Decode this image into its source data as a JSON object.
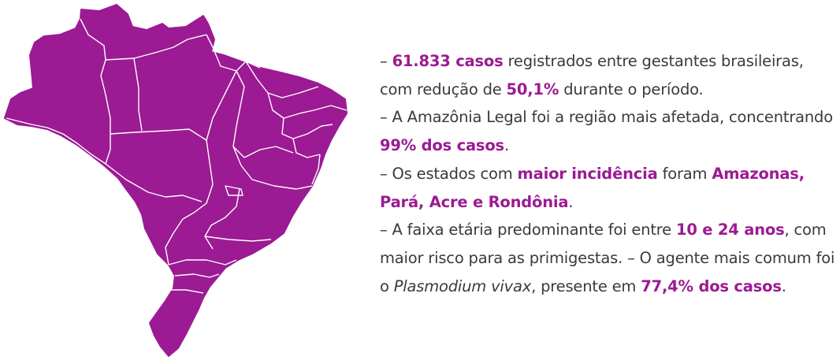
{
  "colors": {
    "accent": "#9c1a93",
    "map_fill": "#9c1a93",
    "border": "#ffffff",
    "text": "#3a3a3a"
  },
  "map": {
    "icon": "brazil-states-map"
  },
  "bullets": [
    {
      "parts": [
        {
          "t": "– "
        },
        {
          "t": "61.833 casos",
          "s": "hl"
        },
        {
          "t": " registrados entre gestantes brasileiras, com redução de "
        },
        {
          "t": "50,1%",
          "s": "hl"
        },
        {
          "t": " durante o período."
        }
      ]
    },
    {
      "parts": [
        {
          "t": "– A Amazônia Legal foi a região mais afetada, concentrando "
        },
        {
          "t": "99% dos casos",
          "s": "hl"
        },
        {
          "t": "."
        }
      ]
    },
    {
      "parts": [
        {
          "t": "– Os estados com "
        },
        {
          "t": "maior incidência",
          "s": "hl"
        },
        {
          "t": " foram "
        },
        {
          "t": "Amazonas, Pará, Acre e Rondônia",
          "s": "hl"
        },
        {
          "t": "."
        }
      ]
    },
    {
      "parts": [
        {
          "t": "– A faixa etária predominante foi entre "
        },
        {
          "t": "10 e 24 anos",
          "s": "hl"
        },
        {
          "t": ", com maior risco para as primigestas. – O agente mais comum foi o "
        },
        {
          "t": "Plasmodium vivax",
          "s": "it"
        },
        {
          "t": ", presente em "
        },
        {
          "t": "77,4% dos casos",
          "s": "hl"
        },
        {
          "t": "."
        }
      ]
    }
  ]
}
